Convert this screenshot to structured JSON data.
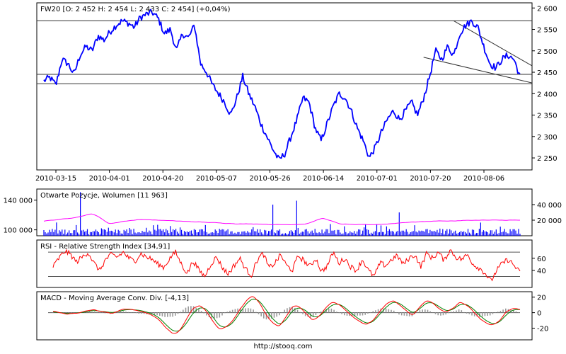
{
  "footer": "http://stooq.com",
  "chart_data": [
    {
      "type": "line",
      "title": "FW20 [O: 2 452  H: 2 454  L: 2 433  C: 2 454] (+0,04%)",
      "x_ticks": [
        "2010-03-15",
        "2010-04-01",
        "2010-04-20",
        "2010-05-07",
        "2010-05-26",
        "2010-06-14",
        "2010-07-01",
        "2010-07-20",
        "2010-08-06"
      ],
      "y_ticks": [
        2250,
        2300,
        2350,
        2400,
        2450,
        2500,
        2550,
        2600
      ],
      "y_tick_labels": [
        "2 250",
        "2 300",
        "2 350",
        "2 400",
        "2 450",
        "2 500",
        "2 550",
        "2 600"
      ],
      "ylim": [
        2222,
        2612
      ],
      "grid": false,
      "series": [
        {
          "color": "#0000ff",
          "values": [
            2430,
            2438,
            2420,
            2480,
            2470,
            2445,
            2490,
            2510,
            2500,
            2535,
            2525,
            2545,
            2560,
            2570,
            2565,
            2555,
            2578,
            2585,
            2590,
            2575,
            2540,
            2550,
            2500,
            2540,
            2530,
            2560,
            2470,
            2450,
            2420,
            2400,
            2380,
            2350,
            2390,
            2440,
            2400,
            2370,
            2330,
            2300,
            2270,
            2245,
            2260,
            2300,
            2340,
            2390,
            2380,
            2320,
            2290,
            2330,
            2370,
            2400,
            2390,
            2360,
            2320,
            2290,
            2250,
            2275,
            2310,
            2340,
            2360,
            2340,
            2360,
            2380,
            2350,
            2390,
            2440,
            2500,
            2480,
            2510,
            2490,
            2540,
            2560,
            2570,
            2555,
            2510,
            2470,
            2460,
            2480,
            2490,
            2480,
            2440
          ]
        }
      ],
      "horizontal_levels": [
        2570,
        2445,
        2423
      ],
      "trend_lines": [
        {
          "from": [
            68,
            2570
          ],
          "to": [
            79,
            2465
          ]
        },
        {
          "from": [
            63,
            2485
          ],
          "to": [
            79,
            2425
          ]
        }
      ]
    },
    {
      "type": "bar",
      "title": "Otwarte Pozycje, Wolumen [11 963]",
      "left_ticks": [
        "140 000",
        "100 000"
      ],
      "right_ticks": [
        "40 000",
        "20 000"
      ],
      "left_tick_values": [
        140000,
        100000
      ],
      "right_tick_values": [
        40000,
        20000
      ],
      "left_range": [
        92000,
        155000
      ],
      "right_range": [
        0,
        60000
      ],
      "volume_color": "#0000ff",
      "open_interest_color": "#ff00ff",
      "volume_spikes": [
        {
          "x": 6,
          "value": 56000
        },
        {
          "x": 38,
          "value": 40000
        },
        {
          "x": 42,
          "value": 45000
        },
        {
          "x": 59,
          "value": 30000
        }
      ],
      "open_interest": [
        112000,
        114000,
        117000,
        122000,
        108000,
        112000,
        114000,
        113000,
        112000,
        111000,
        110000,
        109000,
        108000,
        108000,
        107000,
        107000,
        108000,
        116000,
        108000,
        107000,
        107000,
        108000,
        110000,
        111000,
        112000,
        112000,
        113000,
        113000,
        113000,
        113000
      ]
    },
    {
      "type": "line",
      "title": "RSI - Relative Strength Index [34,91]",
      "y_ticks": [
        40,
        60
      ],
      "y_tick_labels": [
        "40",
        "60"
      ],
      "ylim": [
        12,
        90
      ],
      "reference_levels": [
        30,
        70
      ],
      "series": [
        {
          "color": "#ff0000",
          "values": [
            46,
            60,
            72,
            66,
            54,
            62,
            70,
            52,
            40,
            58,
            66,
            62,
            70,
            60,
            55,
            68,
            62,
            58,
            50,
            45,
            60,
            70,
            50,
            35,
            56,
            40,
            30,
            50,
            62,
            45,
            34,
            48,
            60,
            42,
            32,
            58,
            68,
            44,
            52,
            66,
            48,
            40,
            64,
            56,
            46,
            60,
            38,
            48,
            70,
            52,
            60,
            46,
            40,
            58,
            40,
            30,
            52,
            48,
            58,
            64,
            50,
            60,
            66,
            46,
            68,
            60,
            70,
            56,
            74,
            62,
            58,
            66,
            50,
            44,
            36,
            22,
            40,
            52,
            58,
            48,
            36
          ]
        }
      ]
    },
    {
      "type": "line",
      "title": "MACD - Moving Average Conv. Div. [-4,13]",
      "y_ticks": [
        -20,
        0,
        20
      ],
      "y_tick_labels": [
        "-20",
        "0",
        "20"
      ],
      "ylim": [
        -35,
        27
      ],
      "histogram_color": "#999999",
      "series": [
        {
          "color": "#ff0000",
          "values": [
            2,
            0,
            -2,
            -1,
            0,
            2,
            4,
            2,
            0,
            -1,
            3,
            5,
            4,
            2,
            0,
            -4,
            -10,
            -20,
            -28,
            -24,
            -8,
            6,
            10,
            2,
            -12,
            -22,
            -18,
            -10,
            4,
            16,
            22,
            12,
            -4,
            -14,
            -18,
            -4,
            10,
            8,
            -2,
            -10,
            -4,
            8,
            14,
            10,
            2,
            -6,
            -12,
            -16,
            -10,
            2,
            12,
            16,
            10,
            2,
            -4,
            8,
            16,
            12,
            4,
            0,
            6,
            14,
            10,
            2,
            -8,
            -14,
            -16,
            -10,
            2,
            6,
            4
          ]
        },
        {
          "color": "#008000",
          "values": [
            1,
            0,
            -1,
            -1,
            0,
            1,
            3,
            2,
            1,
            0,
            2,
            4,
            4,
            3,
            1,
            -2,
            -7,
            -16,
            -24,
            -24,
            -14,
            0,
            7,
            5,
            -6,
            -18,
            -19,
            -13,
            0,
            12,
            19,
            15,
            3,
            -9,
            -16,
            -9,
            4,
            7,
            2,
            -6,
            -5,
            4,
            11,
            11,
            5,
            -3,
            -9,
            -14,
            -12,
            -2,
            8,
            14,
            12,
            5,
            -1,
            5,
            13,
            13,
            7,
            2,
            4,
            11,
            11,
            5,
            -4,
            -11,
            -15,
            -12,
            -2,
            4,
            4
          ]
        }
      ]
    }
  ]
}
